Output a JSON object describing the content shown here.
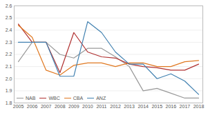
{
  "chart_data": {
    "type": "line",
    "x": [
      2005,
      2006,
      2007,
      2008,
      2009,
      2010,
      2011,
      2012,
      2013,
      2014,
      2015,
      2016,
      2017,
      2018
    ],
    "series": [
      {
        "name": "NAB",
        "color": "#999999",
        "values": [
          2.14,
          2.3,
          2.3,
          2.2,
          2.17,
          2.25,
          2.25,
          2.18,
          2.1,
          1.9,
          1.92,
          1.88,
          1.84,
          1.84
        ]
      },
      {
        "name": "WBC",
        "color": "#b03030",
        "values": [
          2.45,
          2.3,
          2.3,
          2.05,
          2.38,
          2.22,
          2.18,
          2.17,
          2.12,
          2.1,
          2.09,
          2.07,
          2.07,
          2.12
        ]
      },
      {
        "name": "CBA",
        "color": "#e07820",
        "values": [
          2.44,
          2.34,
          2.07,
          2.03,
          2.11,
          2.13,
          2.13,
          2.1,
          2.13,
          2.13,
          2.1,
          2.1,
          2.14,
          2.15
        ]
      },
      {
        "name": "ANZ",
        "color": "#4080b0",
        "values": [
          2.3,
          2.3,
          2.3,
          2.02,
          2.02,
          2.47,
          2.38,
          2.22,
          2.12,
          2.12,
          2.0,
          2.04,
          1.98,
          1.87
        ]
      }
    ],
    "xlim": [
      2004.7,
      2018.3
    ],
    "xticks": [
      2005,
      2006,
      2007,
      2008,
      2009,
      2010,
      2011,
      2012,
      2013,
      2014,
      2015,
      2016,
      2017,
      2018
    ],
    "ylim": [
      1.8,
      2.6
    ],
    "yticks": [
      1.8,
      1.9,
      {
        "value": 2.0,
        "label": "2.0"
      },
      2.1,
      2.2,
      2.3,
      2.4,
      2.5,
      2.6
    ],
    "grid": true,
    "legend": "lower left"
  }
}
